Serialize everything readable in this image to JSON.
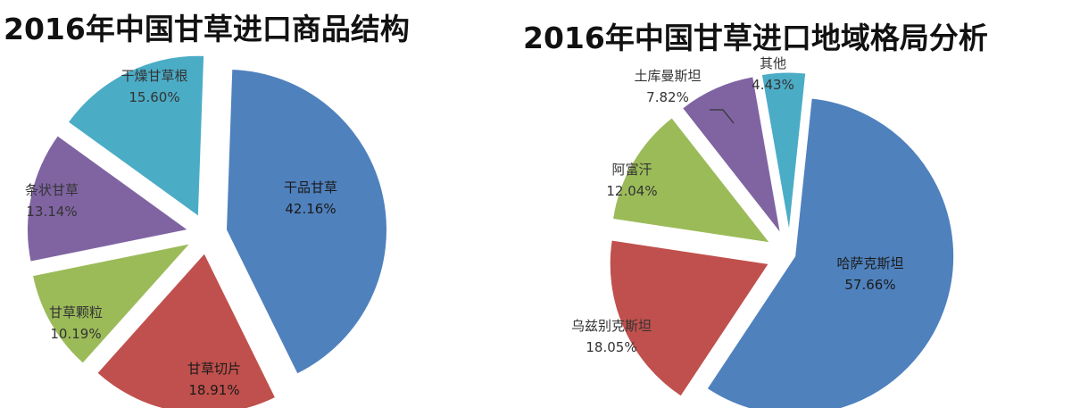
{
  "chart_data": [
    {
      "type": "pie",
      "title": "2016年中国甘草进口商品结构",
      "slices": [
        {
          "name": "干品甘草",
          "value": 42.16,
          "label": "42.16%",
          "color": "#4f81bd"
        },
        {
          "name": "甘草切片",
          "value": 18.91,
          "label": "18.91%",
          "color": "#c0504d"
        },
        {
          "name": "甘草颗粒",
          "value": 10.19,
          "label": "10.19%",
          "color": "#9bbb59"
        },
        {
          "name": "条状甘草",
          "value": 13.14,
          "label": "13.14%",
          "color": "#8064a2"
        },
        {
          "name": "干燥甘草根",
          "value": 15.6,
          "label": "15.60%",
          "color": "#4bacc6"
        }
      ]
    },
    {
      "type": "pie",
      "title": "2016年中国甘草进口地域格局分析",
      "slices": [
        {
          "name": "哈萨克斯坦",
          "value": 57.66,
          "label": "57.66%",
          "color": "#4f81bd"
        },
        {
          "name": "乌兹别克斯坦",
          "value": 18.05,
          "label": "18.05%",
          "color": "#c0504d"
        },
        {
          "name": "阿富汗",
          "value": 12.04,
          "label": "12.04%",
          "color": "#9bbb59"
        },
        {
          "name": "土库曼斯坦",
          "value": 7.82,
          "label": "7.82%",
          "color": "#8064a2"
        },
        {
          "name": "其他",
          "value": 4.43,
          "label": "4.43%",
          "color": "#4bacc6"
        }
      ]
    }
  ]
}
